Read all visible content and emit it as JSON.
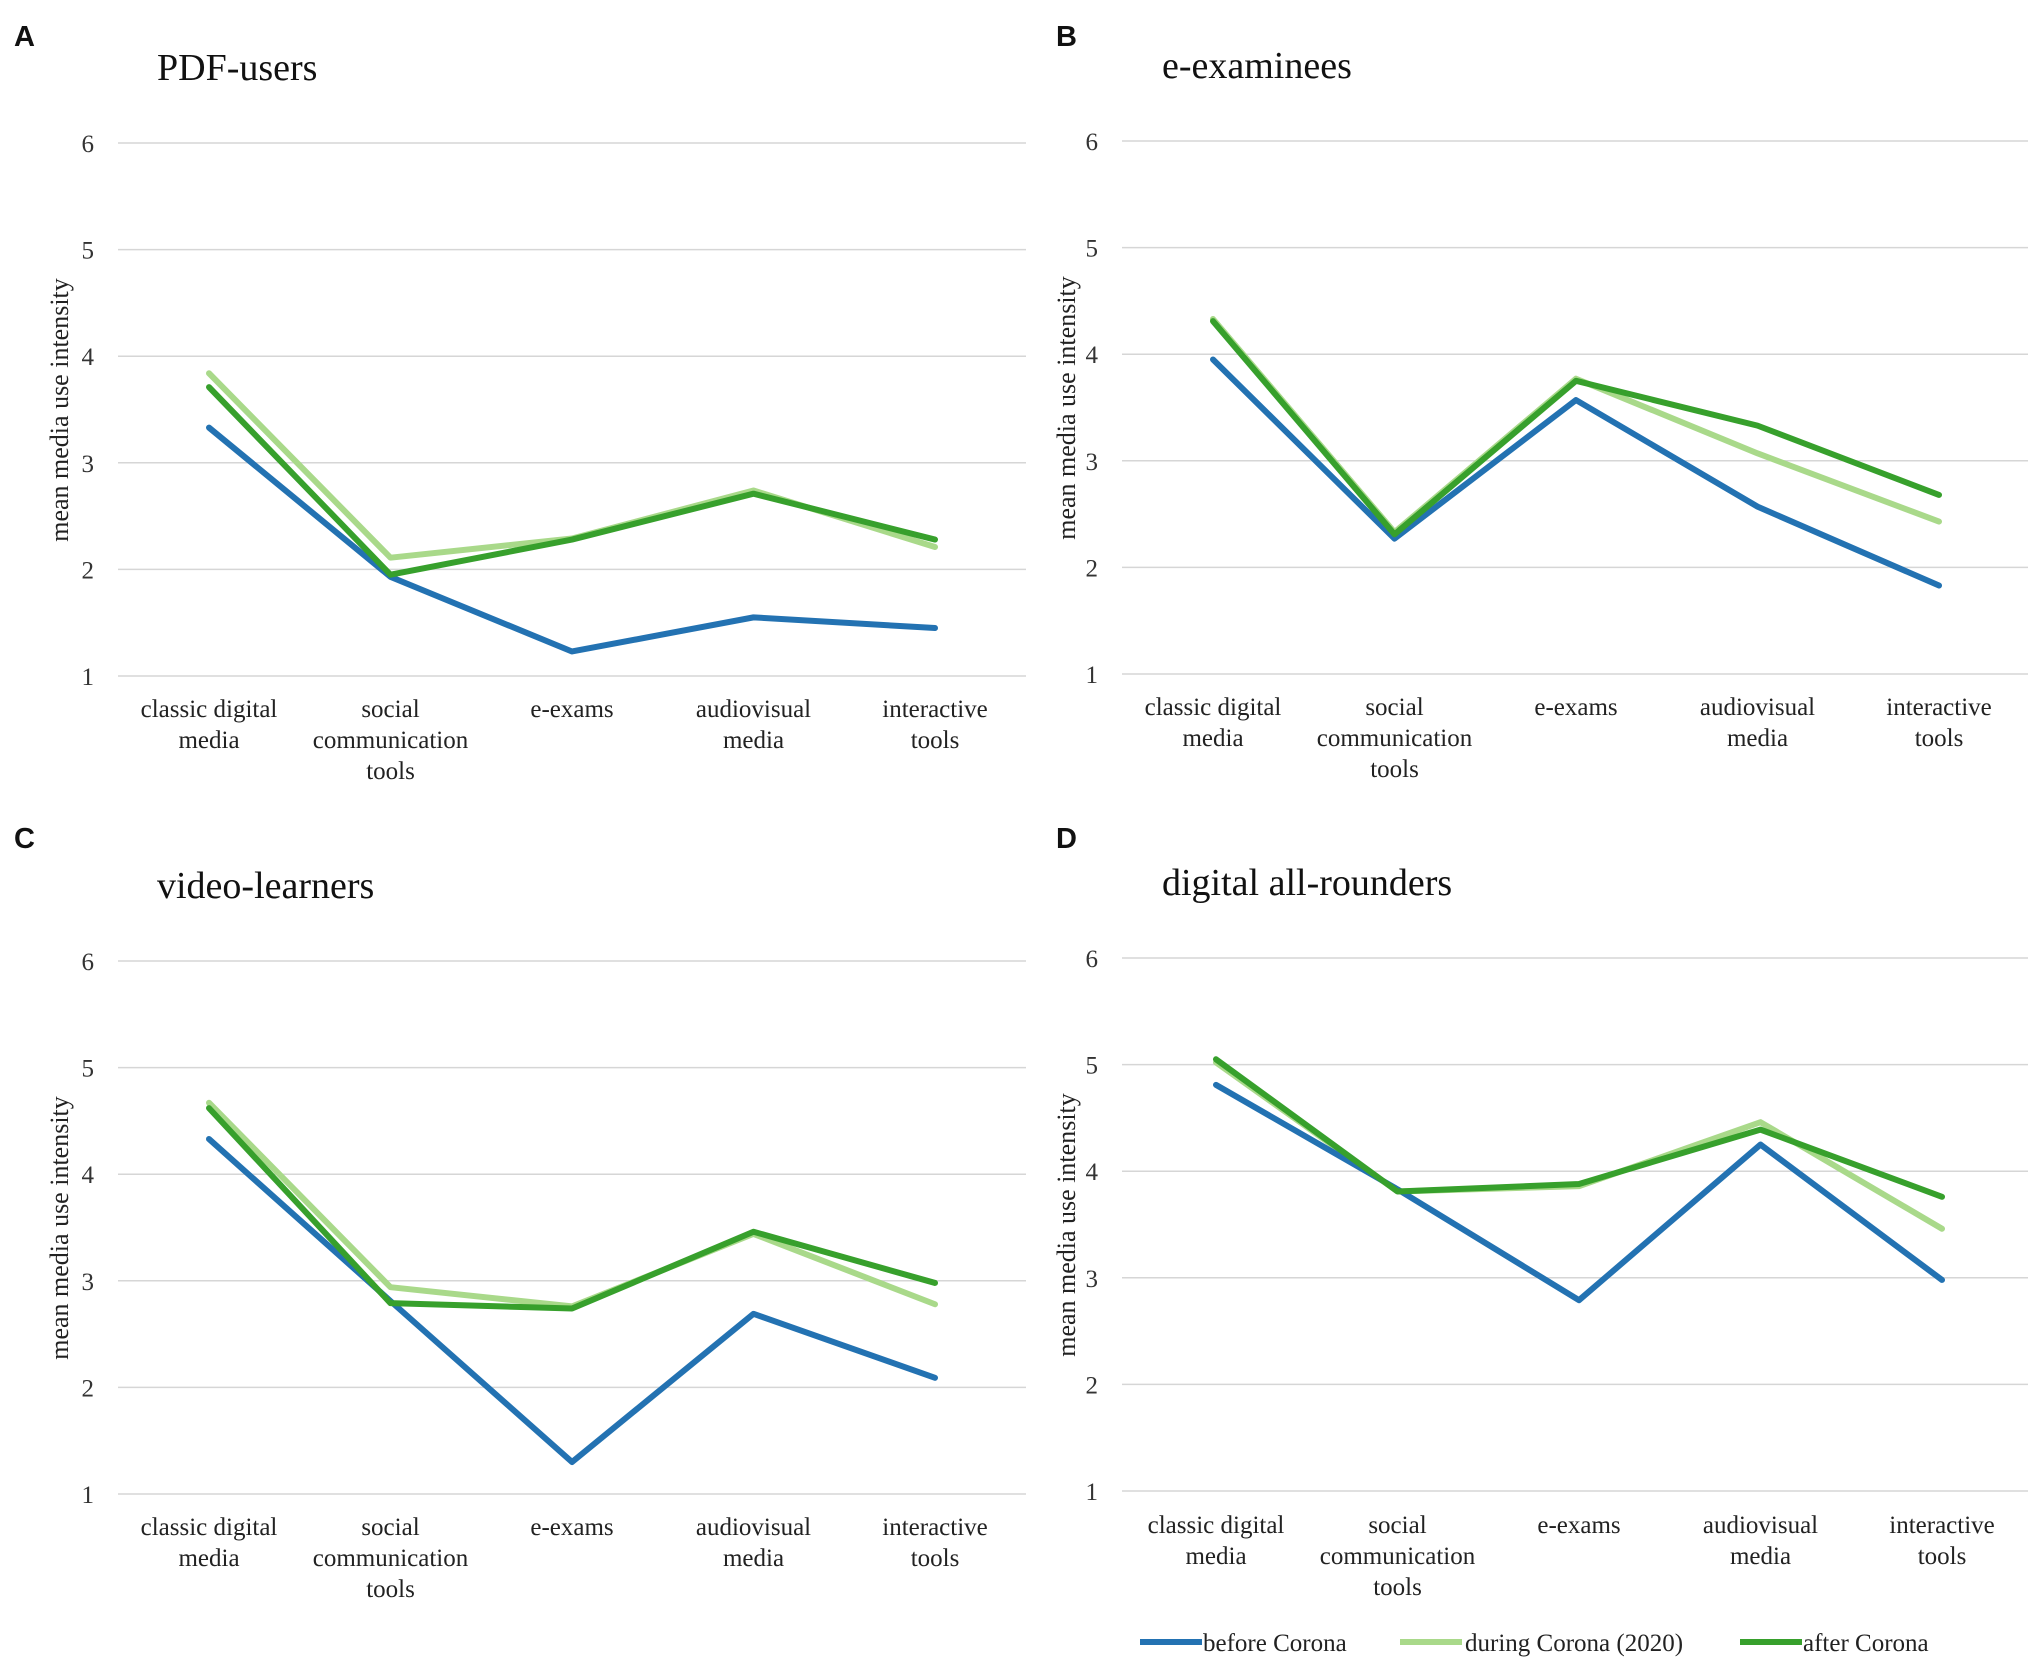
{
  "chart_data": [
    {
      "type": "line",
      "panel": "A",
      "title": "PDF-users",
      "ylabel": "mean media use intensity",
      "xlabel": "",
      "ylim": [
        1,
        6
      ],
      "yticks": [
        "1",
        "2",
        "3",
        "4",
        "5",
        "6"
      ],
      "categories": [
        [
          "classic digital",
          "media"
        ],
        [
          "social",
          "communication",
          "tools"
        ],
        [
          "e-exams"
        ],
        [
          "audiovisual",
          "media"
        ],
        [
          "interactive",
          "tools"
        ]
      ],
      "series": [
        {
          "name": "before Corona",
          "values": [
            3.33,
            1.93,
            1.23,
            1.55,
            1.45
          ]
        },
        {
          "name": "during Corona (2020)",
          "values": [
            3.84,
            2.11,
            2.29,
            2.74,
            2.21
          ]
        },
        {
          "name": "after Corona",
          "values": [
            3.71,
            1.95,
            2.28,
            2.71,
            2.28
          ]
        }
      ]
    },
    {
      "type": "line",
      "panel": "B",
      "title": "e-examinees",
      "ylabel": "mean media use intensity",
      "xlabel": "",
      "ylim": [
        1,
        6
      ],
      "yticks": [
        "1",
        "2",
        "3",
        "4",
        "5",
        "6"
      ],
      "categories": [
        [
          "classic digital",
          "media"
        ],
        [
          "social",
          "communication",
          "tools"
        ],
        [
          "e-exams"
        ],
        [
          "audiovisual",
          "media"
        ],
        [
          "interactive",
          "tools"
        ]
      ],
      "series": [
        {
          "name": "before Corona",
          "values": [
            3.95,
            2.27,
            3.57,
            2.57,
            1.83
          ]
        },
        {
          "name": "during Corona (2020)",
          "values": [
            4.33,
            2.33,
            3.77,
            3.07,
            2.43
          ]
        },
        {
          "name": "after Corona",
          "values": [
            4.31,
            2.31,
            3.75,
            3.33,
            2.68
          ]
        }
      ]
    },
    {
      "type": "line",
      "panel": "C",
      "title": "video-learners",
      "ylabel": "mean media use intensity",
      "xlabel": "",
      "ylim": [
        1,
        6
      ],
      "yticks": [
        "1",
        "2",
        "3",
        "4",
        "5",
        "6"
      ],
      "categories": [
        [
          "classic digital",
          "media"
        ],
        [
          "social",
          "communication",
          "tools"
        ],
        [
          "e-exams"
        ],
        [
          "audiovisual",
          "media"
        ],
        [
          "interactive",
          "tools"
        ]
      ],
      "series": [
        {
          "name": "before Corona",
          "values": [
            4.33,
            2.81,
            1.3,
            2.69,
            2.09
          ]
        },
        {
          "name": "during Corona (2020)",
          "values": [
            4.67,
            2.94,
            2.76,
            3.44,
            2.78
          ]
        },
        {
          "name": "after Corona",
          "values": [
            4.62,
            2.79,
            2.74,
            3.46,
            2.98
          ]
        }
      ]
    },
    {
      "type": "line",
      "panel": "D",
      "title": "digital all-rounders",
      "ylabel": "mean media use intensity",
      "xlabel": "",
      "ylim": [
        1,
        6
      ],
      "yticks": [
        "1",
        "2",
        "3",
        "4",
        "5",
        "6"
      ],
      "categories": [
        [
          "classic digital",
          "media"
        ],
        [
          "social",
          "communication",
          "tools"
        ],
        [
          "e-exams"
        ],
        [
          "audiovisual",
          "media"
        ],
        [
          "interactive",
          "tools"
        ]
      ],
      "series": [
        {
          "name": "before Corona",
          "values": [
            4.81,
            3.83,
            2.79,
            4.25,
            2.98
          ]
        },
        {
          "name": "during Corona (2020)",
          "values": [
            5.02,
            3.81,
            3.86,
            4.46,
            3.46
          ]
        },
        {
          "name": "after Corona",
          "values": [
            5.05,
            3.81,
            3.88,
            4.39,
            3.76
          ]
        }
      ]
    }
  ],
  "legend": {
    "position": "bottom-right",
    "items": [
      {
        "label": "before Corona",
        "color": "#2372b2"
      },
      {
        "label": "during Corona (2020)",
        "color": "#a9d98a"
      },
      {
        "label": "after Corona",
        "color": "#37a02c"
      }
    ]
  },
  "series_colors": {
    "before Corona": "#2372b2",
    "during Corona (2020)": "#a9d98a",
    "after Corona": "#37a02c"
  }
}
